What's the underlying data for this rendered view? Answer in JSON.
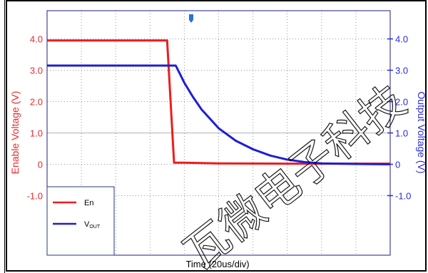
{
  "chart_data": {
    "type": "line",
    "title": "",
    "xlabel": "Time  (20us/div)",
    "ylabel_left": "Enable Voltage  (V)",
    "ylabel_right": "Output Voltage  (V)",
    "x_divisions": 10,
    "xlim": [
      0,
      200
    ],
    "ylim": [
      -2.9,
      4.9
    ],
    "grid": true,
    "legend_position": "bottom-left",
    "left_ticks": [
      "4.0",
      "3.0",
      "2.0",
      "1.0",
      "0",
      "-1.0"
    ],
    "left_tick_values": [
      4.0,
      3.0,
      2.0,
      1.0,
      0,
      -1.0
    ],
    "right_ticks": [
      "4.0",
      "3.0",
      "2.0",
      "1.0",
      "0",
      "-1.0"
    ],
    "right_tick_values": [
      4.0,
      3.0,
      2.0,
      1.0,
      0,
      -1.0
    ],
    "series": [
      {
        "name": "En",
        "color": "#ee1c1c",
        "x": [
          0,
          20,
          40,
          60,
          70,
          74,
          80,
          100,
          140,
          200
        ],
        "y": [
          3.95,
          3.95,
          3.95,
          3.95,
          3.95,
          0.05,
          0.05,
          0.03,
          0.02,
          0.02
        ]
      },
      {
        "name": "V",
        "subscript": "OUT",
        "color": "#1e1ed6",
        "x": [
          0,
          20,
          40,
          60,
          75,
          80,
          85,
          90,
          100,
          110,
          120,
          130,
          140,
          150,
          160,
          180,
          200
        ],
        "y": [
          3.15,
          3.15,
          3.15,
          3.15,
          3.15,
          2.6,
          2.15,
          1.75,
          1.15,
          0.75,
          0.48,
          0.28,
          0.15,
          0.07,
          0.03,
          0.01,
          0.0
        ]
      }
    ]
  },
  "watermark": "瓦微电子科技",
  "colors": {
    "frame": "#000000",
    "grid": "#9a9a9a",
    "plot_border": "#1c1c80"
  }
}
